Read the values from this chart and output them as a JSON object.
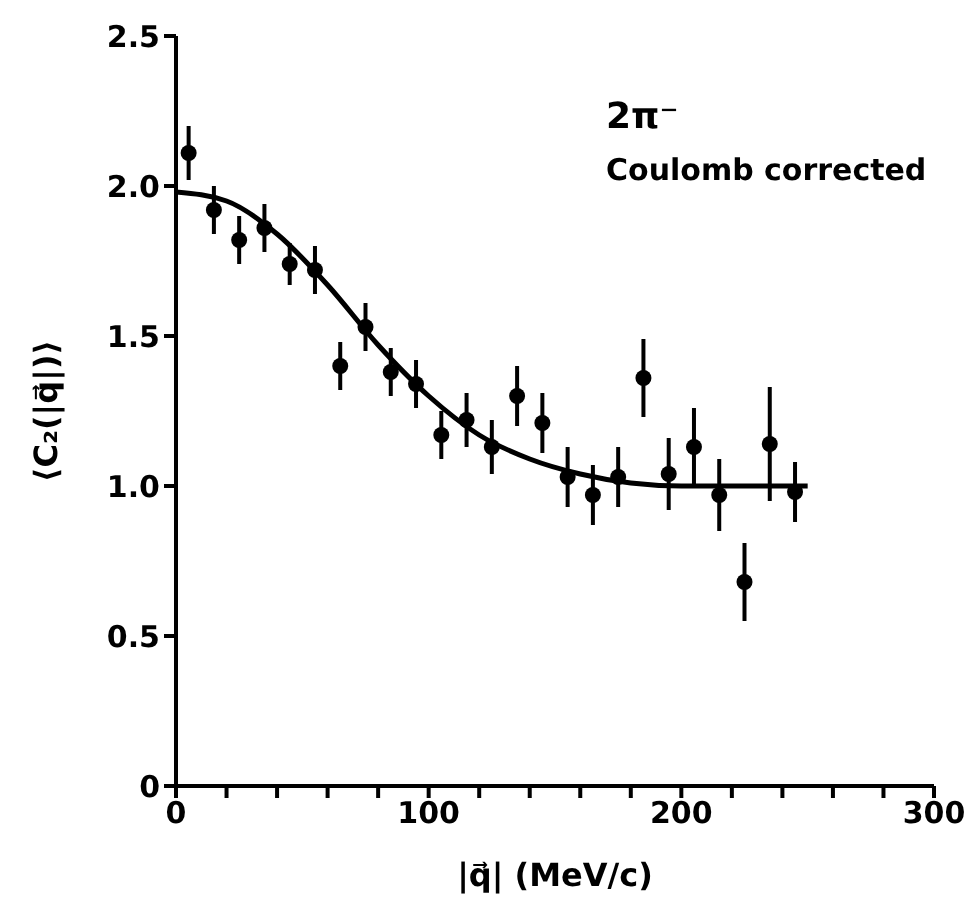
{
  "chart_data": {
    "type": "scatter",
    "xlabel": "|q⃗| (MeV/c)",
    "ylabel": "⟨C₂(|q⃗|)⟩",
    "annotations": [
      "2π⁻",
      "Coulomb corrected"
    ],
    "xlim": [
      0,
      300
    ],
    "ylim": [
      0,
      2.5
    ],
    "xticks": [
      0,
      {
        "value": 20,
        "label": null
      },
      {
        "value": 40,
        "label": null
      },
      {
        "value": 60,
        "label": null
      },
      {
        "value": 80,
        "label": null
      },
      100,
      {
        "value": 120,
        "label": null
      },
      {
        "value": 140,
        "label": null
      },
      {
        "value": 160,
        "label": null
      },
      {
        "value": 180,
        "label": null
      },
      200,
      {
        "value": 220,
        "label": null
      },
      {
        "value": 240,
        "label": null
      },
      {
        "value": 260,
        "label": null
      },
      {
        "value": 280,
        "label": null
      },
      300
    ],
    "yticks": [
      0,
      0.5,
      {
        "value": 1,
        "label": "1.0"
      },
      1.5,
      {
        "value": 2,
        "label": "2.0"
      },
      2.5
    ],
    "marker": "circle",
    "grid": false,
    "legend": false,
    "series": [
      {
        "color": "#000000",
        "x": [
          5,
          15,
          25,
          35,
          45,
          55,
          65,
          75,
          85,
          95,
          105,
          115,
          125,
          135,
          145,
          155,
          165,
          175,
          185,
          195,
          205,
          215,
          225,
          235,
          245
        ],
        "values": [
          2.11,
          1.92,
          1.82,
          1.86,
          1.74,
          1.72,
          1.4,
          1.53,
          1.38,
          1.34,
          1.17,
          1.22,
          1.13,
          1.3,
          1.21,
          1.03,
          0.97,
          1.03,
          1.36,
          1.04,
          1.13,
          0.97,
          0.68,
          1.14,
          0.98
        ],
        "errors": [
          0.09,
          0.08,
          0.08,
          0.08,
          0.07,
          0.08,
          0.08,
          0.08,
          0.08,
          0.08,
          0.08,
          0.09,
          0.09,
          0.1,
          0.1,
          0.1,
          0.1,
          0.1,
          0.13,
          0.12,
          0.13,
          0.12,
          0.13,
          0.19,
          0.1
        ]
      },
      {
        "type": "line",
        "color": "#000000",
        "marker": "none",
        "x": [
          0,
          20,
          40,
          60,
          80,
          100,
          120,
          140,
          160,
          180,
          200,
          225,
          250
        ],
        "values": [
          1.98,
          1.95,
          1.84,
          1.67,
          1.47,
          1.3,
          1.17,
          1.09,
          1.04,
          1.01,
          1.0,
          1.0,
          1.0
        ]
      }
    ]
  }
}
